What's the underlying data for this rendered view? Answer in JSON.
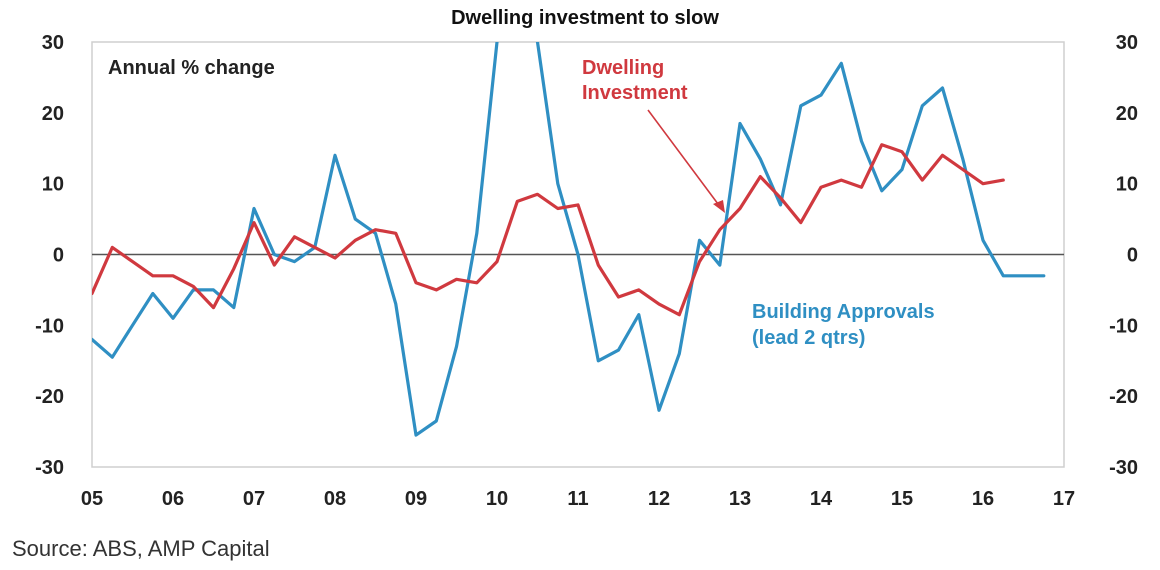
{
  "chart_data": {
    "type": "line",
    "title": "Dwelling investment to slow",
    "subtitle": "Annual % change",
    "source": "Source: ABS, AMP Capital",
    "ylim": [
      -30,
      30
    ],
    "xlim": [
      2005,
      2017
    ],
    "yticks": [
      30,
      20,
      10,
      0,
      -10,
      -20,
      -30
    ],
    "xtick_labels": [
      "05",
      "06",
      "07",
      "08",
      "09",
      "10",
      "11",
      "12",
      "13",
      "14",
      "15",
      "16",
      "17"
    ],
    "grid": false,
    "zero_line": true,
    "series": [
      {
        "name": "Dwelling Investment",
        "label_lines": [
          "Dwelling",
          "Investment"
        ],
        "color": "#d0393f",
        "x": [
          2005.0,
          2005.25,
          2005.5,
          2005.75,
          2006.0,
          2006.25,
          2006.5,
          2006.75,
          2007.0,
          2007.25,
          2007.5,
          2007.75,
          2008.0,
          2008.25,
          2008.5,
          2008.75,
          2009.0,
          2009.25,
          2009.5,
          2009.75,
          2010.0,
          2010.25,
          2010.5,
          2010.75,
          2011.0,
          2011.25,
          2011.5,
          2011.75,
          2012.0,
          2012.25,
          2012.5,
          2012.75,
          2013.0,
          2013.25,
          2013.5,
          2013.75,
          2014.0,
          2014.25,
          2014.5,
          2014.75,
          2015.0,
          2015.25,
          2015.5,
          2015.75,
          2016.0,
          2016.25
        ],
        "values": [
          -5.5,
          1,
          -1,
          -3,
          -3,
          -4.5,
          -7.5,
          -2,
          4.5,
          -1.5,
          2.5,
          1,
          -0.5,
          2,
          3.5,
          3,
          -4,
          -5,
          -3.5,
          -4,
          -1,
          7.5,
          8.5,
          6.5,
          7,
          -1.5,
          -6,
          -5,
          -7,
          -8.5,
          -1,
          3.5,
          6.5,
          11,
          8,
          4.5,
          9.5,
          10.5,
          9.5,
          15.5,
          14.5,
          10.5,
          14,
          12,
          10,
          10.5
        ]
      },
      {
        "name": "Building Approvals (lead 2 qtrs)",
        "label_lines": [
          "Building Approvals",
          "(lead 2 qtrs)"
        ],
        "color": "#2f8fc3",
        "x": [
          2005.0,
          2005.25,
          2005.5,
          2005.75,
          2006.0,
          2006.25,
          2006.5,
          2006.75,
          2007.0,
          2007.25,
          2007.5,
          2007.75,
          2008.0,
          2008.25,
          2008.5,
          2008.75,
          2009.0,
          2009.25,
          2009.5,
          2009.75,
          2010.0,
          2010.25,
          2010.5,
          2010.75,
          2011.0,
          2011.25,
          2011.5,
          2011.75,
          2012.0,
          2012.25,
          2012.5,
          2012.75,
          2013.0,
          2013.25,
          2013.5,
          2013.75,
          2014.0,
          2014.25,
          2014.5,
          2014.75,
          2015.0,
          2015.25,
          2015.5,
          2015.75,
          2016.0,
          2016.25,
          2016.5,
          2016.75
        ],
        "values": [
          -12,
          -14.5,
          -10,
          -5.5,
          -9,
          -5,
          -5,
          -7.5,
          6.5,
          0,
          -1,
          1,
          14,
          5,
          3,
          -7,
          -25.5,
          -23.5,
          -13,
          3,
          30,
          42,
          30,
          10,
          0,
          -15,
          -13.5,
          -8.5,
          -22,
          -14,
          2,
          -1.5,
          18.5,
          13.5,
          7,
          21,
          22.5,
          27,
          16,
          9,
          12,
          21,
          23.5,
          13.5,
          2,
          -3,
          -3,
          -3
        ]
      }
    ]
  }
}
